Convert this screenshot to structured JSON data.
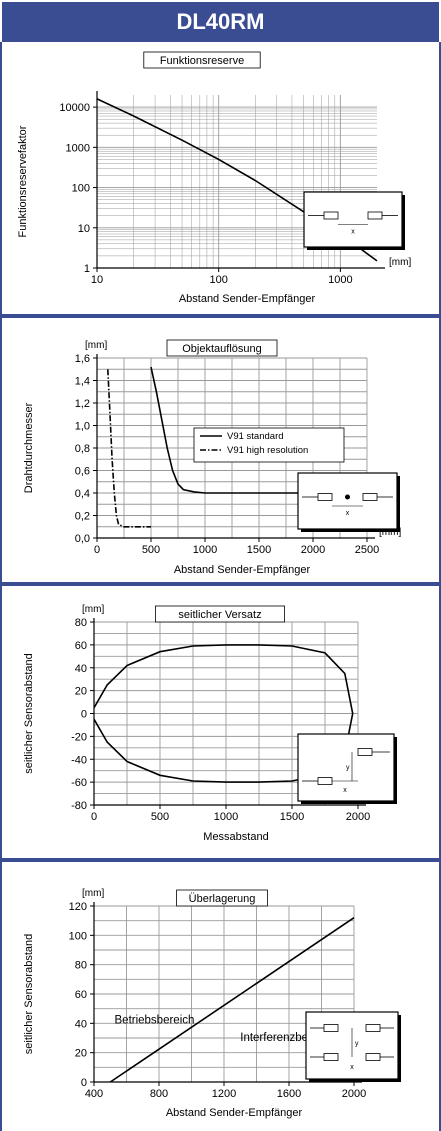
{
  "header": {
    "title": "DL40RM"
  },
  "colors": {
    "header_bg": "#3a4d92",
    "grid": "#9a9a9a",
    "line": "#000000"
  },
  "chart_data": [
    {
      "type": "line",
      "title": "Funktionsreserve",
      "xlabel": "Abstand Sender-Empfänger",
      "ylabel": "Funktionsreservefaktor",
      "x_unit": "[mm]",
      "y_unit": "",
      "xscale": "log",
      "yscale": "log",
      "xlim": [
        10,
        2000
      ],
      "ylim": [
        1,
        20000
      ],
      "xticks": [
        10,
        100,
        1000
      ],
      "xtick_labels": [
        "10",
        "100",
        "1000"
      ],
      "yticks": [
        1,
        10,
        100,
        1000,
        10000
      ],
      "ytick_labels": [
        "1",
        "10",
        "100",
        "1000",
        "10000"
      ],
      "grid": true,
      "series": [
        {
          "name": "",
          "style": "solid",
          "x": [
            10,
            20,
            50,
            100,
            200,
            500,
            1000,
            2000
          ],
          "y": [
            16000,
            6000,
            1500,
            500,
            150,
            25,
            7,
            1.5
          ]
        }
      ],
      "annotations": [],
      "inset": "sender-receiver-x"
    },
    {
      "type": "line",
      "title": "Objektauflösung",
      "xlabel": "Abstand Sender-Empfänger",
      "ylabel": "Drahtdurchmesser",
      "x_unit": "[mm]",
      "y_unit": "[mm]",
      "xscale": "linear",
      "yscale": "linear",
      "xlim": [
        0,
        2500
      ],
      "ylim": [
        0,
        1.6
      ],
      "xticks": [
        0,
        500,
        1000,
        1500,
        2000,
        2500
      ],
      "xtick_labels": [
        "0",
        "500",
        "1000",
        "1500",
        "2000",
        "2500"
      ],
      "yticks": [
        0,
        0.2,
        0.4,
        0.6,
        0.8,
        1.0,
        1.2,
        1.4,
        1.6
      ],
      "ytick_labels": [
        "0,0",
        "0,2",
        "0,4",
        "0,6",
        "0,8",
        "1,0",
        "1,2",
        "1,4",
        "1,6"
      ],
      "grid": true,
      "legend_position": "center-right",
      "series": [
        {
          "name": "V91 standard",
          "style": "solid",
          "x": [
            500,
            550,
            600,
            650,
            700,
            750,
            800,
            900,
            1000,
            1500,
            2000,
            2300
          ],
          "y": [
            1.52,
            1.3,
            1.05,
            0.8,
            0.6,
            0.48,
            0.43,
            0.41,
            0.4,
            0.4,
            0.4,
            0.4
          ]
        },
        {
          "name": "V91 high resolution",
          "style": "dashdot",
          "x": [
            100,
            120,
            140,
            160,
            180,
            200,
            250,
            300,
            400,
            500
          ],
          "y": [
            1.5,
            1.1,
            0.7,
            0.4,
            0.2,
            0.12,
            0.1,
            0.1,
            0.1,
            0.1
          ]
        }
      ],
      "annotations": [],
      "inset": "sender-receiver-dot-x"
    },
    {
      "type": "line",
      "title": "seitlicher Versatz",
      "xlabel": "Messabstand",
      "ylabel": "seitlicher Sensorabstand",
      "x_unit": "[mm]",
      "y_unit": "[mm]",
      "xscale": "linear",
      "yscale": "linear",
      "xlim": [
        0,
        2000
      ],
      "ylim": [
        -80,
        80
      ],
      "xticks": [
        0,
        500,
        1000,
        1500,
        2000
      ],
      "xtick_labels": [
        "0",
        "500",
        "1000",
        "1500",
        "2000"
      ],
      "yticks": [
        -80,
        -60,
        -40,
        -20,
        0,
        20,
        40,
        60,
        80
      ],
      "ytick_labels": [
        "-80",
        "-60",
        "-40",
        "-20",
        "0",
        "20",
        "40",
        "60",
        "80"
      ],
      "grid": true,
      "series": [
        {
          "name": "",
          "style": "solid",
          "x": [
            0,
            100,
            250,
            500,
            750,
            1000,
            1250,
            1500,
            1750,
            1900,
            1960,
            1960,
            1900,
            1750,
            1500,
            1250,
            1000,
            750,
            500,
            250,
            100,
            0
          ],
          "y": [
            5,
            25,
            42,
            54,
            59,
            60,
            60,
            59,
            53,
            35,
            0,
            0,
            -35,
            -53,
            -59,
            -60,
            -60,
            -59,
            -54,
            -42,
            -25,
            -5
          ]
        }
      ],
      "annotations": [],
      "inset": "sender-receiver-y-x"
    },
    {
      "type": "line",
      "title": "Überlagerung",
      "xlabel": "Abstand Sender-Empfänger",
      "ylabel": "seitlicher Sensorabstand",
      "x_unit": "[mm]",
      "y_unit": "[mm]",
      "xscale": "linear",
      "yscale": "linear",
      "xlim": [
        400,
        2000
      ],
      "ylim": [
        0,
        120
      ],
      "xticks": [
        400,
        800,
        1200,
        1600,
        2000
      ],
      "xtick_labels": [
        "400",
        "800",
        "1200",
        "1600",
        "2000"
      ],
      "yticks": [
        0,
        20,
        40,
        60,
        80,
        100,
        120
      ],
      "ytick_labels": [
        "0",
        "20",
        "40",
        "60",
        "80",
        "100",
        "120"
      ],
      "grid": true,
      "series": [
        {
          "name": "",
          "style": "solid",
          "x": [
            500,
            2000
          ],
          "y": [
            0,
            112
          ]
        }
      ],
      "annotations": [
        {
          "text": "Betriebsbereich",
          "x": 440,
          "y": 40
        },
        {
          "text": "Interferenzbereich",
          "x": 1300,
          "y": 28
        }
      ],
      "inset": "two-pairs-y-x"
    }
  ]
}
